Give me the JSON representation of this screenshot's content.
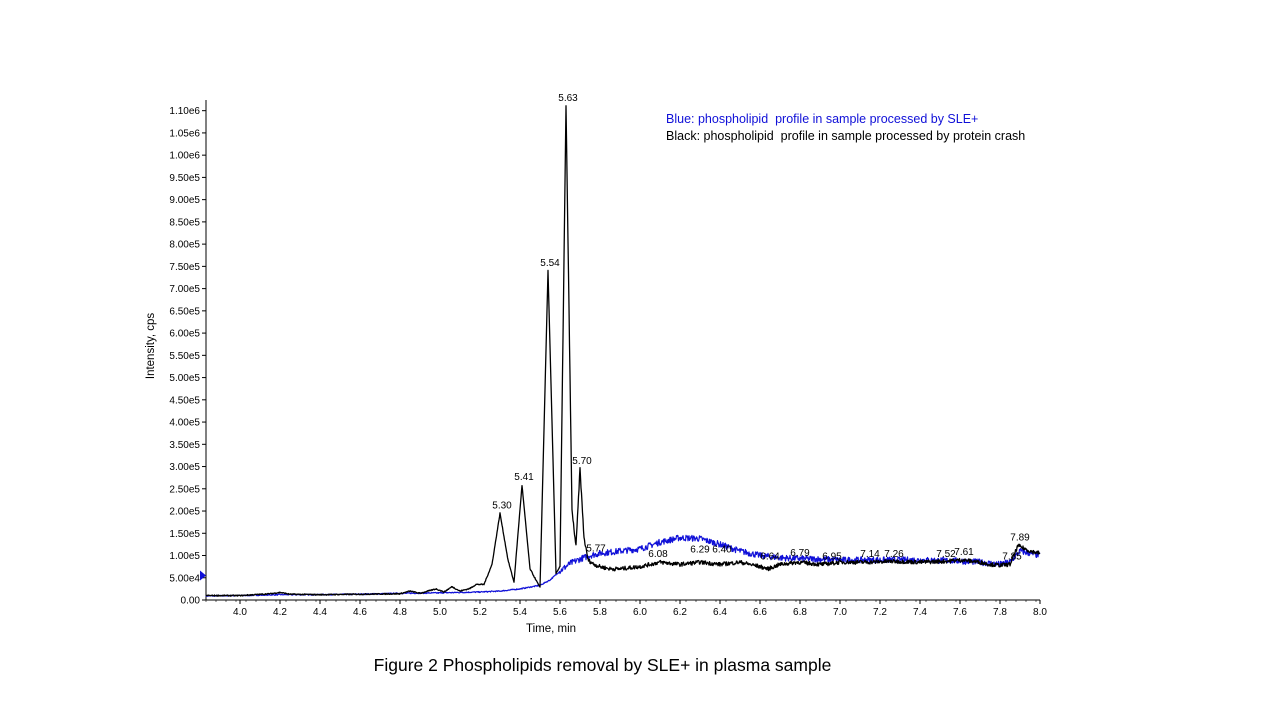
{
  "caption": "Figure 2 Phospholipids removal by SLE+ in plasma sample",
  "chart_data": {
    "type": "line",
    "xlabel": "Time, min",
    "ylabel": "Intensity, cps",
    "xlim": [
      3.83,
      8.0
    ],
    "ylim": [
      0,
      1115000
    ],
    "grid": false,
    "legend_position": "top-right",
    "x_ticks": [
      4.0,
      4.2,
      4.4,
      4.6,
      4.8,
      5.0,
      5.2,
      5.4,
      5.6,
      5.8,
      6.0,
      6.2,
      6.4,
      6.6,
      6.8,
      7.0,
      7.2,
      7.4,
      7.6,
      7.8,
      8.0
    ],
    "x_tick_labels": [
      "4.0",
      "4.2",
      "4.4",
      "4.6",
      "4.8",
      "5.0",
      "5.2",
      "5.4",
      "5.6",
      "5.8",
      "6.0",
      "6.2",
      "6.4",
      "6.6",
      "6.8",
      "7.0",
      "7.2",
      "7.4",
      "7.6",
      "7.8",
      "8.0"
    ],
    "y_ticks": [
      0,
      50000,
      100000,
      150000,
      200000,
      250000,
      300000,
      350000,
      400000,
      450000,
      500000,
      550000,
      600000,
      650000,
      700000,
      750000,
      800000,
      850000,
      900000,
      950000,
      1000000,
      1050000,
      1100000
    ],
    "y_tick_labels": [
      "0.00",
      "5.00e4",
      "1.00e5",
      "1.50e5",
      "2.00e5",
      "2.50e5",
      "3.00e5",
      "3.50e5",
      "4.00e5",
      "4.50e5",
      "5.00e5",
      "5.50e5",
      "6.00e5",
      "6.50e5",
      "7.00e5",
      "7.50e5",
      "8.00e5",
      "8.50e5",
      "9.00e5",
      "9.50e5",
      "1.00e6",
      "1.05e6",
      "1.10e6"
    ],
    "legend": [
      {
        "text": "Blue: phospholipid  profile in sample processed by SLE+",
        "color": "#1010d8"
      },
      {
        "text": "Black: phospholipid  profile in sample processed by protein crash",
        "color": "#000000"
      }
    ],
    "series": [
      {
        "color": "#1010d8",
        "x": [
          3.83,
          4.0,
          4.2,
          4.4,
          4.6,
          4.8,
          5.0,
          5.2,
          5.3,
          5.4,
          5.5,
          5.55,
          5.6,
          5.65,
          5.7,
          5.75,
          5.8,
          5.9,
          6.0,
          6.1,
          6.2,
          6.3,
          6.4,
          6.5,
          6.6,
          6.7,
          6.8,
          6.9,
          7.0,
          7.2,
          7.4,
          7.6,
          7.7,
          7.8,
          7.85,
          7.9,
          8.0
        ],
        "y": [
          9000,
          10000,
          12000,
          12000,
          13000,
          15000,
          16000,
          18000,
          20000,
          25000,
          33000,
          45000,
          65000,
          82000,
          92000,
          100000,
          105000,
          110000,
          115000,
          130000,
          140000,
          138000,
          125000,
          110000,
          100000,
          95000,
          93000,
          92000,
          90000,
          90000,
          90000,
          88000,
          85000,
          80000,
          85000,
          110000,
          100000
        ]
      },
      {
        "color": "#000000",
        "x": [
          3.83,
          4.0,
          4.15,
          4.2,
          4.25,
          4.4,
          4.6,
          4.8,
          4.85,
          4.9,
          4.98,
          5.02,
          5.06,
          5.1,
          5.15,
          5.18,
          5.22,
          5.26,
          5.3,
          5.34,
          5.37,
          5.41,
          5.45,
          5.5,
          5.54,
          5.58,
          5.6,
          5.63,
          5.66,
          5.68,
          5.7,
          5.72,
          5.74,
          5.77,
          5.8,
          5.85,
          5.9,
          6.0,
          6.1,
          6.2,
          6.3,
          6.4,
          6.5,
          6.6,
          6.64,
          6.7,
          6.79,
          6.9,
          6.95,
          7.0,
          7.14,
          7.26,
          7.4,
          7.52,
          7.61,
          7.7,
          7.75,
          7.8,
          7.85,
          7.89,
          7.95,
          8.0
        ],
        "y": [
          10000,
          10000,
          14000,
          17000,
          13000,
          12000,
          13000,
          14000,
          20000,
          15000,
          25000,
          18000,
          30000,
          20000,
          26000,
          35000,
          35000,
          80000,
          195000,
          90000,
          40000,
          258000,
          70000,
          28000,
          740000,
          60000,
          75000,
          1110000,
          200000,
          120000,
          295000,
          140000,
          90000,
          80000,
          75000,
          70000,
          70000,
          75000,
          85000,
          80000,
          85000,
          80000,
          85000,
          75000,
          70000,
          80000,
          85000,
          80000,
          82000,
          85000,
          85000,
          87000,
          85000,
          87000,
          90000,
          85000,
          80000,
          78000,
          80000,
          122000,
          110000,
          105000
        ]
      }
    ],
    "peak_labels": [
      {
        "label": "5.30",
        "x": 5.3,
        "y": 195000
      },
      {
        "label": "5.41",
        "x": 5.41,
        "y": 258000
      },
      {
        "label": "5.54",
        "x": 5.54,
        "y": 740000
      },
      {
        "label": "5.63",
        "x": 5.63,
        "y": 1110000
      },
      {
        "label": "5.70",
        "x": 5.7,
        "y": 295000
      },
      {
        "label": "5.77",
        "x": 5.77,
        "y": 98000
      },
      {
        "label": "6.08",
        "x": 6.08,
        "y": 85000
      },
      {
        "label": "6.29",
        "x": 6.29,
        "y": 95000
      },
      {
        "label": "6.40",
        "x": 6.4,
        "y": 95000
      },
      {
        "label": "6.64",
        "x": 6.64,
        "y": 80000
      },
      {
        "label": "6.79",
        "x": 6.79,
        "y": 88000
      },
      {
        "label": "6.95",
        "x": 6.95,
        "y": 80000
      },
      {
        "label": "7.14",
        "x": 7.14,
        "y": 85000
      },
      {
        "label": "7.26",
        "x": 7.26,
        "y": 85000
      },
      {
        "label": "7.52",
        "x": 7.52,
        "y": 85000
      },
      {
        "label": "7.61",
        "x": 7.61,
        "y": 90000
      },
      {
        "label": "7.85",
        "x": 7.85,
        "y": 80000
      },
      {
        "label": "7.89",
        "x": 7.89,
        "y": 122000
      }
    ]
  }
}
